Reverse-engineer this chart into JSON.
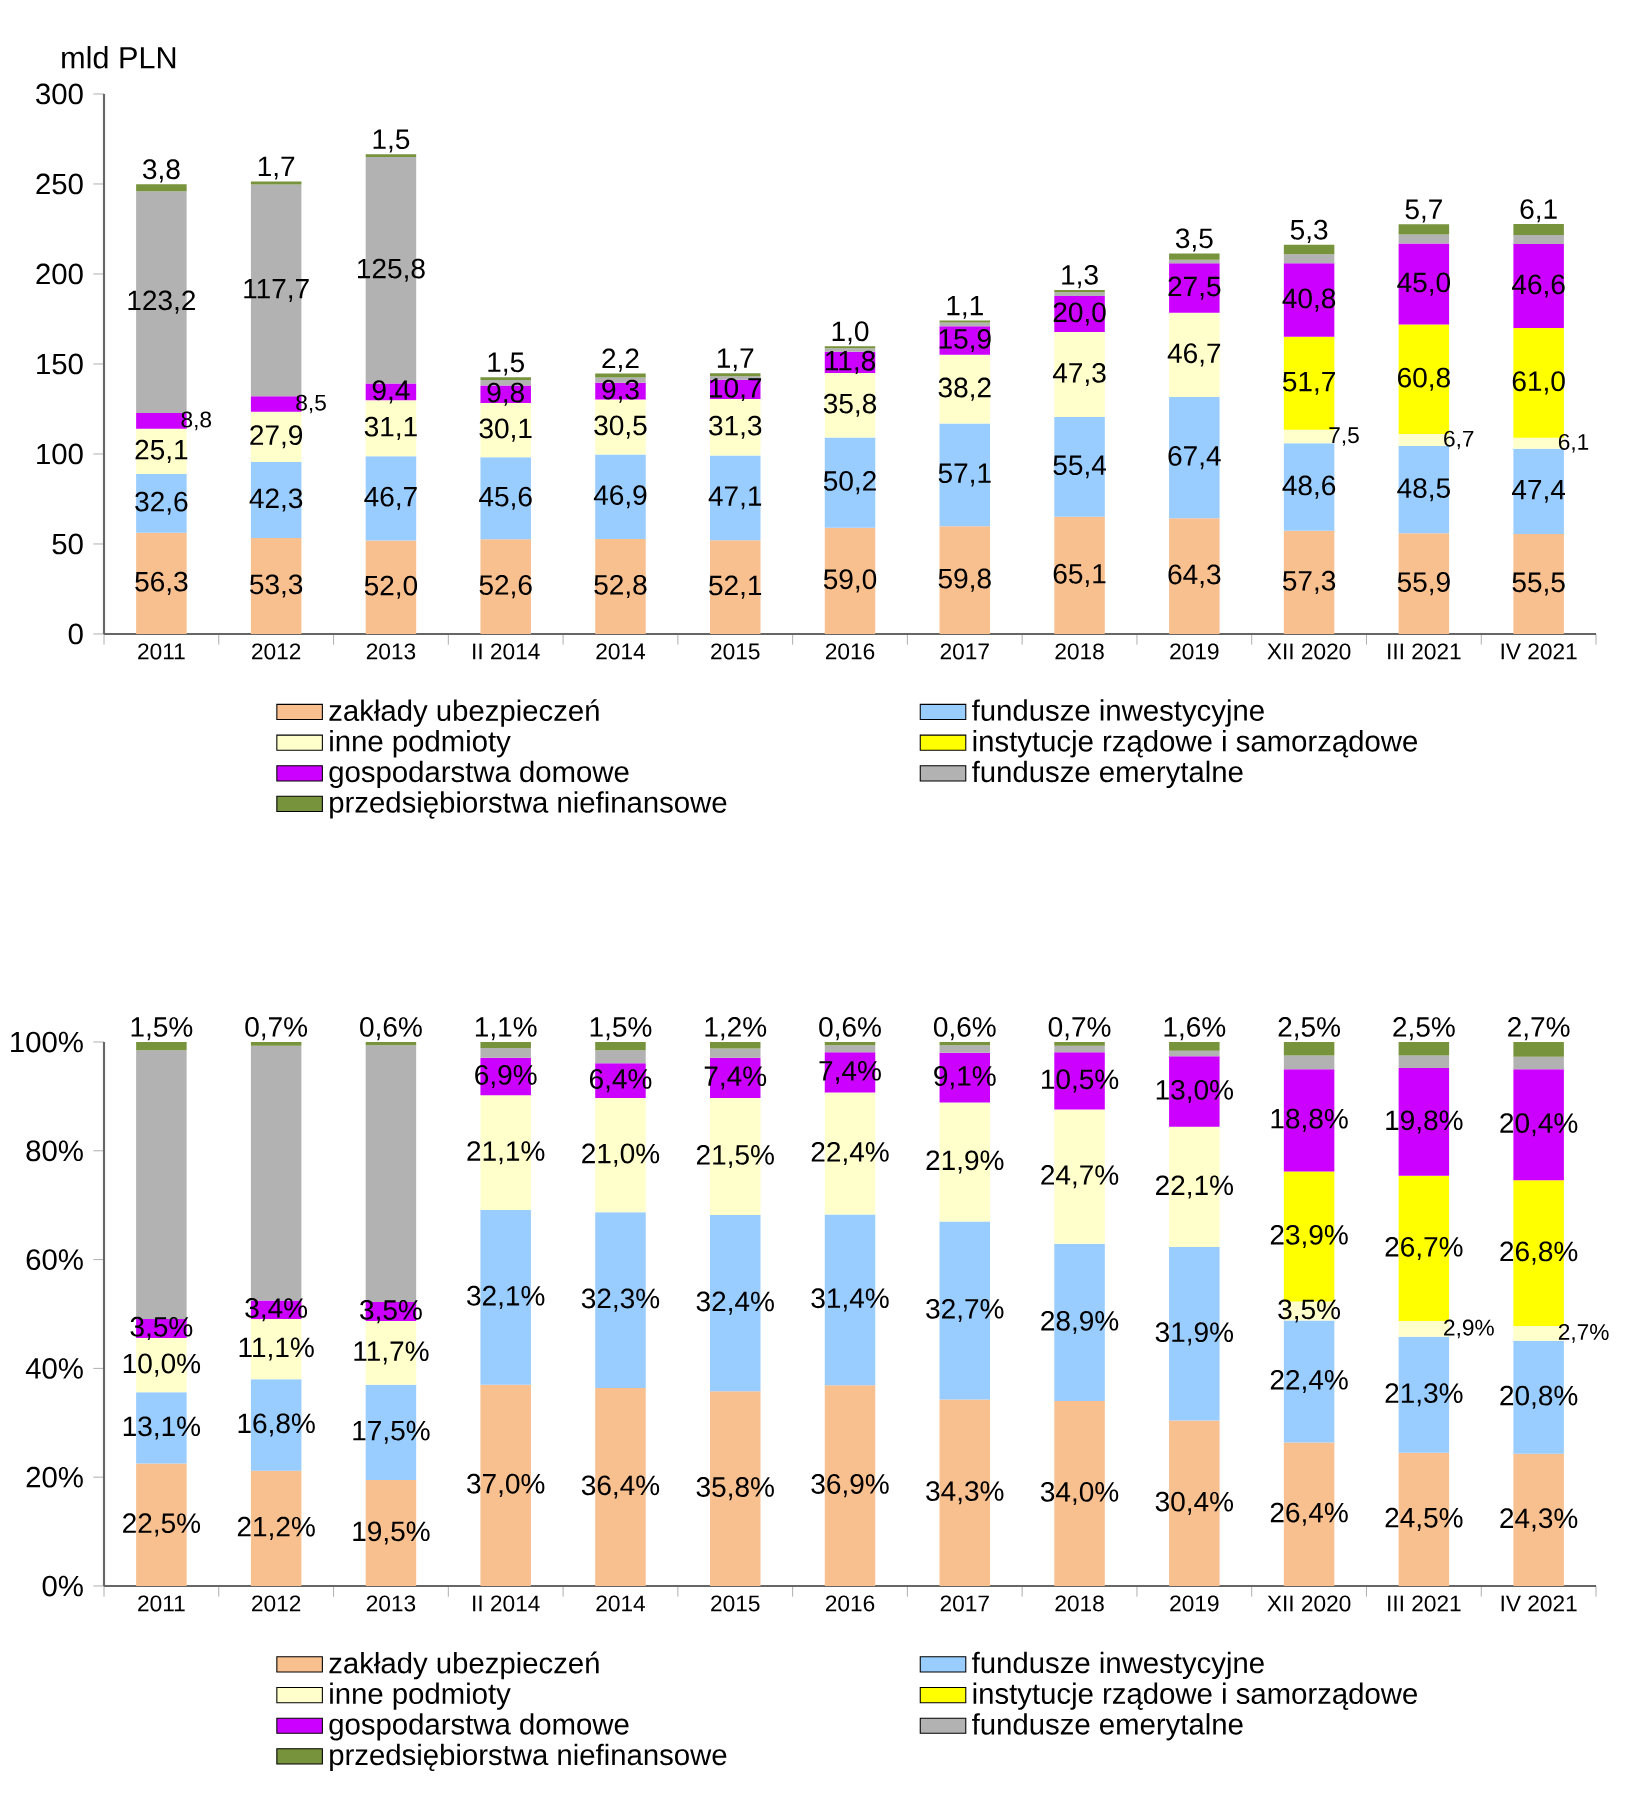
{
  "chart_data": [
    {
      "type": "bar",
      "stacked": true,
      "ylabel": "mld PLN",
      "legend": "bottom",
      "categories": [
        "2011",
        "2012",
        "2013",
        "II 2014",
        "2014",
        "2015",
        "2016",
        "2017",
        "2018",
        "2019",
        "XII 2020",
        "III 2021",
        "IV 2021"
      ],
      "ylim": [
        0,
        300
      ],
      "yticks": [
        0,
        50,
        100,
        150,
        200,
        250,
        300
      ],
      "series": [
        {
          "name": "zakłady ubezpieczeń",
          "color": "#f8bf8f",
          "values": [
            56.3,
            53.3,
            52.0,
            52.6,
            52.8,
            52.1,
            59.0,
            59.8,
            65.1,
            64.3,
            57.3,
            55.9,
            55.5
          ],
          "value_labels": [
            "56,3",
            "53,3",
            "52,0",
            "52,6",
            "52,8",
            "52,1",
            "59,0",
            "59,8",
            "65,1",
            "64,3",
            "57,3",
            "55,9",
            "55,5"
          ]
        },
        {
          "name": "fundusze inwestycyjne",
          "color": "#99ccff",
          "values": [
            32.6,
            42.3,
            46.7,
            45.6,
            46.9,
            47.1,
            50.2,
            57.1,
            55.4,
            67.4,
            48.6,
            48.5,
            47.4
          ],
          "value_labels": [
            "32,6",
            "42,3",
            "46,7",
            "45,6",
            "46,9",
            "47,1",
            "50,2",
            "57,1",
            "55,4",
            "67,4",
            "48,6",
            "48,5",
            "47,4"
          ]
        },
        {
          "name": "inne podmioty",
          "color": "#ffffcc",
          "values": [
            25.1,
            27.9,
            31.1,
            30.1,
            30.5,
            31.3,
            35.8,
            38.2,
            47.3,
            46.7,
            7.5,
            6.7,
            6.1
          ],
          "value_labels": [
            "25,1",
            "27,9",
            "31,1",
            "30,1",
            "30,5",
            "31,3",
            "35,8",
            "38,2",
            "47,3",
            "46,7",
            "7,5",
            "6,7",
            "6,1"
          ]
        },
        {
          "name": "instytucje rządowe i samorządowe",
          "color": "#ffff00",
          "values": [
            null,
            null,
            null,
            null,
            null,
            null,
            null,
            null,
            null,
            null,
            51.7,
            60.8,
            61.0
          ],
          "value_labels": [
            null,
            null,
            null,
            null,
            null,
            null,
            null,
            null,
            null,
            null,
            "51,7",
            "60,8",
            "61,0"
          ]
        },
        {
          "name": "gospodarstwa domowe",
          "color": "#cc00ff",
          "values": [
            8.8,
            8.5,
            9.4,
            9.8,
            9.3,
            10.7,
            11.8,
            15.9,
            20.0,
            27.5,
            40.8,
            45.0,
            46.6
          ],
          "value_labels": [
            "8,8",
            "8,5",
            "9,4",
            "9,8",
            "9,3",
            "10,7",
            "11,8",
            "15,9",
            "20,0",
            "27,5",
            "40,8",
            "45,0",
            "46,6"
          ]
        },
        {
          "name": "fundusze emerytalne",
          "color": "#b2b2b2",
          "values": [
            123.2,
            117.7,
            125.8,
            3,
            3,
            2,
            2,
            2,
            2,
            2,
            5,
            5,
            5
          ],
          "value_labels": [
            "123,2",
            "117,7",
            "125,8",
            null,
            null,
            null,
            null,
            null,
            null,
            null,
            null,
            null,
            null
          ]
        },
        {
          "name": "przedsiębiorstwa niefinansowe",
          "color": "#77933c",
          "values": [
            3.8,
            1.7,
            1.5,
            1.5,
            2.2,
            1.7,
            1.0,
            1.1,
            1.3,
            3.5,
            5.3,
            5.7,
            6.1
          ],
          "value_labels": [
            "3,8",
            "1,7",
            "1,5",
            "1,5",
            "2,2",
            "1,7",
            "1,0",
            "1,1",
            "1,3",
            "3,5",
            "5,3",
            "5,7",
            "6,1"
          ]
        }
      ]
    },
    {
      "type": "bar",
      "stacked": true,
      "legend": "bottom",
      "categories": [
        "2011",
        "2012",
        "2013",
        "II 2014",
        "2014",
        "2015",
        "2016",
        "2017",
        "2018",
        "2019",
        "XII 2020",
        "III 2021",
        "IV 2021"
      ],
      "ylim": [
        0,
        100
      ],
      "yticks": [
        {
          "value": 0,
          "label": "0%"
        },
        {
          "value": 20,
          "label": "20%"
        },
        {
          "value": 40,
          "label": "40%"
        },
        {
          "value": 60,
          "label": "60%"
        },
        {
          "value": 80,
          "label": "80%"
        },
        {
          "value": 100,
          "label": "100%"
        }
      ],
      "series": [
        {
          "name": "zakłady ubezpieczeń",
          "color": "#f8bf8f",
          "values": [
            22.5,
            21.2,
            19.5,
            37.0,
            36.4,
            35.8,
            36.9,
            34.3,
            34.0,
            30.4,
            26.4,
            24.5,
            24.3
          ],
          "value_labels": [
            "22,5%",
            "21,2%",
            "19,5%",
            "37,0%",
            "36,4%",
            "35,8%",
            "36,9%",
            "34,3%",
            "34,0%",
            "30,4%",
            "26,4%",
            "24,5%",
            "24,3%"
          ]
        },
        {
          "name": "fundusze inwestycyjne",
          "color": "#99ccff",
          "values": [
            13.1,
            16.8,
            17.5,
            32.1,
            32.3,
            32.4,
            31.4,
            32.7,
            28.9,
            31.9,
            22.4,
            21.3,
            20.8
          ],
          "value_labels": [
            "13,1%",
            "16,8%",
            "17,5%",
            "32,1%",
            "32,3%",
            "32,4%",
            "31,4%",
            "32,7%",
            "28,9%",
            "31,9%",
            "22,4%",
            "21,3%",
            "20,8%"
          ]
        },
        {
          "name": "inne podmioty",
          "color": "#ffffcc",
          "values": [
            10.0,
            11.1,
            11.7,
            21.1,
            21.0,
            21.5,
            22.4,
            21.9,
            24.7,
            22.1,
            3.5,
            2.9,
            2.7
          ],
          "value_labels": [
            "10,0%",
            "11,1%",
            "11,7%",
            "21,1%",
            "21,0%",
            "21,5%",
            "22,4%",
            "21,9%",
            "24,7%",
            "22,1%",
            "3,5%",
            "2,9%",
            "2,7%"
          ]
        },
        {
          "name": "instytucje rządowe i samorządowe",
          "color": "#ffff00",
          "values": [
            null,
            null,
            null,
            null,
            null,
            null,
            null,
            null,
            null,
            null,
            23.9,
            26.7,
            26.8
          ],
          "value_labels": [
            null,
            null,
            null,
            null,
            null,
            null,
            null,
            null,
            null,
            null,
            "23,9%",
            "26,7%",
            "26,8%"
          ]
        },
        {
          "name": "gospodarstwa domowe",
          "color": "#cc00ff",
          "values": [
            3.5,
            3.4,
            3.5,
            6.9,
            6.4,
            7.4,
            7.4,
            9.1,
            10.5,
            13.0,
            18.8,
            19.8,
            20.4
          ],
          "value_labels": [
            "3,5%",
            "3,4%",
            "3,5%",
            "6,9%",
            "6,4%",
            "7,4%",
            "7,4%",
            "9,1%",
            "10,5%",
            "13,0%",
            "18,8%",
            "19,8%",
            "20,4%"
          ]
        },
        {
          "name": "fundusze emerytalne",
          "color": "#b2b2b2",
          "values": [
            49.4,
            46.8,
            47.2,
            1.8,
            2.4,
            1.7,
            1.3,
            1.4,
            1.2,
            1.0,
            2.5,
            2.3,
            2.3
          ]
        },
        {
          "name": "przedsiębiorstwa niefinansowe",
          "color": "#77933c",
          "values": [
            1.5,
            0.7,
            0.6,
            1.1,
            1.5,
            1.2,
            0.6,
            0.6,
            0.7,
            1.6,
            2.5,
            2.5,
            2.7
          ],
          "value_labels": [
            "1,5%",
            "0,7%",
            "0,6%",
            "1,1%",
            "1,5%",
            "1,2%",
            "0,6%",
            "0,6%",
            "0,7%",
            "1,6%",
            "2,5%",
            "2,5%",
            "2,7%"
          ]
        }
      ]
    }
  ]
}
